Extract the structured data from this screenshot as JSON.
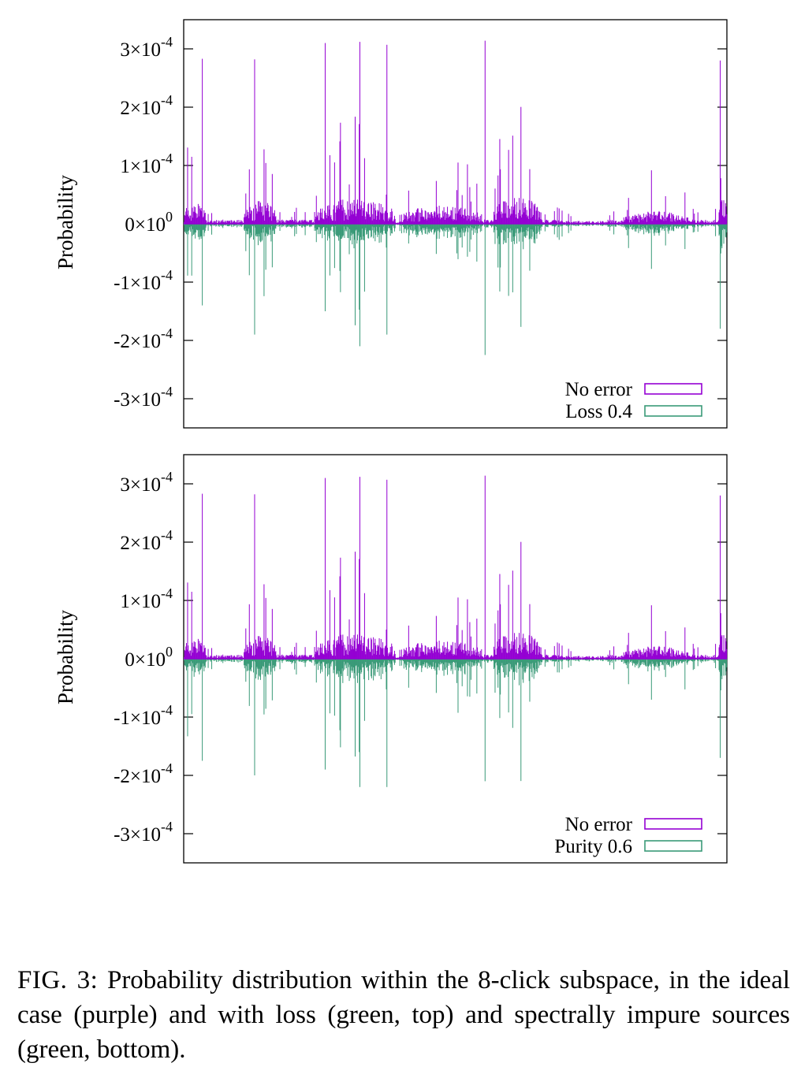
{
  "chart_data": [
    {
      "type": "bar",
      "ylabel": "Probability",
      "ylim": [
        -0.00035,
        0.00035
      ],
      "yticks": [
        {
          "value": 0.0003,
          "mantissa": "3",
          "exp": "-4"
        },
        {
          "value": 0.0002,
          "mantissa": "2",
          "exp": "-4"
        },
        {
          "value": 0.0001,
          "mantissa": "1",
          "exp": "-4"
        },
        {
          "value": 0,
          "mantissa": "0",
          "exp": "0"
        },
        {
          "value": -0.0001,
          "mantissa": "-1",
          "exp": "-4"
        },
        {
          "value": -0.0002,
          "mantissa": "-2",
          "exp": "-4"
        },
        {
          "value": -0.0003,
          "mantissa": "-3",
          "exp": "-4"
        }
      ],
      "legend_position": "bottom-right",
      "series": [
        {
          "name": "No error",
          "color": "#9400d3",
          "direction": "up"
        },
        {
          "name": "Loss 0.4",
          "color": "#3a9a78",
          "direction": "down"
        }
      ],
      "bins": 924,
      "peaks": [
        {
          "x": 0.034,
          "up": 0.000283,
          "down": 0.00014
        },
        {
          "x": 0.13,
          "up": 0.000282,
          "down": 0.00019
        },
        {
          "x": 0.26,
          "up": 0.00031,
          "down": 0.00015
        },
        {
          "x": 0.324,
          "up": 0.000312,
          "down": 0.00021
        },
        {
          "x": 0.374,
          "up": 0.000307,
          "down": 0.00019
        },
        {
          "x": 0.555,
          "up": 0.000314,
          "down": 0.000225
        },
        {
          "x": 0.988,
          "up": 0.00028,
          "down": 0.00018
        }
      ]
    },
    {
      "type": "bar",
      "ylabel": "Probability",
      "ylim": [
        -0.00035,
        0.00035
      ],
      "yticks": [
        {
          "value": 0.0003,
          "mantissa": "3",
          "exp": "-4"
        },
        {
          "value": 0.0002,
          "mantissa": "2",
          "exp": "-4"
        },
        {
          "value": 0.0001,
          "mantissa": "1",
          "exp": "-4"
        },
        {
          "value": 0,
          "mantissa": "0",
          "exp": "0"
        },
        {
          "value": -0.0001,
          "mantissa": "-1",
          "exp": "-4"
        },
        {
          "value": -0.0002,
          "mantissa": "-2",
          "exp": "-4"
        },
        {
          "value": -0.0003,
          "mantissa": "-3",
          "exp": "-4"
        }
      ],
      "legend_position": "bottom-right",
      "series": [
        {
          "name": "No error",
          "color": "#9400d3",
          "direction": "up"
        },
        {
          "name": "Purity 0.6",
          "color": "#3a9a78",
          "direction": "down"
        }
      ],
      "bins": 924,
      "peaks": [
        {
          "x": 0.034,
          "up": 0.000283,
          "down": 0.000175
        },
        {
          "x": 0.13,
          "up": 0.000282,
          "down": 0.0002
        },
        {
          "x": 0.26,
          "up": 0.00031,
          "down": 0.00019
        },
        {
          "x": 0.324,
          "up": 0.000312,
          "down": 0.00022
        },
        {
          "x": 0.374,
          "up": 0.000307,
          "down": 0.00022
        },
        {
          "x": 0.555,
          "up": 0.000314,
          "down": 0.00021
        },
        {
          "x": 0.988,
          "up": 0.00028,
          "down": 0.00017
        }
      ]
    }
  ],
  "caption": {
    "label": "FIG. 3:",
    "text": "Probability distribution within the 8-click subspace, in the ideal case (purple) and with loss (green, top) and spectrally impure sources (green, bottom)."
  }
}
